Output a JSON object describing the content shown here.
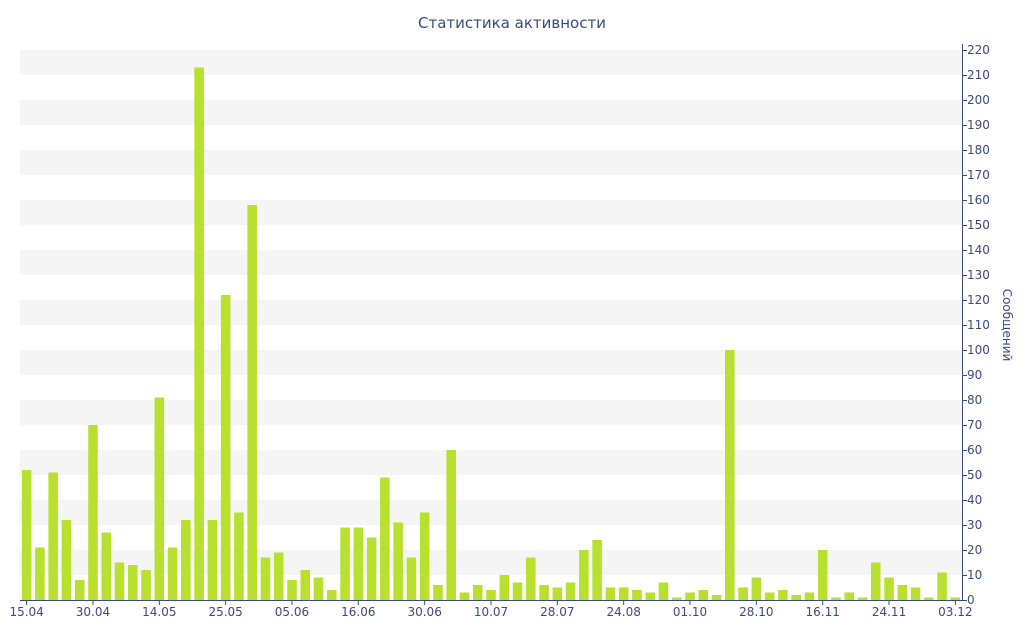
{
  "chart_data": {
    "type": "bar",
    "title": "Статистика активности",
    "xlabel": "",
    "ylabel": "Сообщений",
    "ylim": [
      0,
      220
    ],
    "y_ticks": [
      0,
      10,
      20,
      30,
      40,
      50,
      60,
      70,
      80,
      90,
      100,
      110,
      120,
      130,
      140,
      150,
      160,
      170,
      180,
      190,
      200,
      210,
      220
    ],
    "x_tick_labels": [
      "15.04",
      "30.04",
      "14.05",
      "25.05",
      "05.06",
      "16.06",
      "30.06",
      "10.07",
      "28.07",
      "24.08",
      "01.10",
      "28.10",
      "16.11",
      "24.11",
      "03.12"
    ],
    "x_tick_positions": [
      0,
      5,
      10,
      15,
      20,
      25,
      30,
      35,
      40,
      45,
      50,
      55,
      60,
      65,
      70
    ],
    "values": [
      52,
      21,
      51,
      32,
      8,
      70,
      27,
      15,
      14,
      12,
      81,
      21,
      32,
      213,
      32,
      122,
      35,
      158,
      17,
      19,
      8,
      12,
      9,
      4,
      29,
      29,
      25,
      49,
      31,
      17,
      35,
      6,
      60,
      3,
      6,
      4,
      10,
      7,
      17,
      6,
      5,
      7,
      20,
      24,
      5,
      5,
      4,
      3,
      7,
      1,
      3,
      4,
      2,
      100,
      5,
      9,
      3,
      4,
      2,
      3,
      20,
      1,
      3,
      1,
      15,
      9,
      6,
      5,
      1,
      11,
      1
    ],
    "colors": {
      "bar": "#b8e02e",
      "axis": "#3b4a7a",
      "band": "#f5f5f5"
    },
    "grid": "alternating horizontal bands",
    "y_axis_side": "right"
  }
}
